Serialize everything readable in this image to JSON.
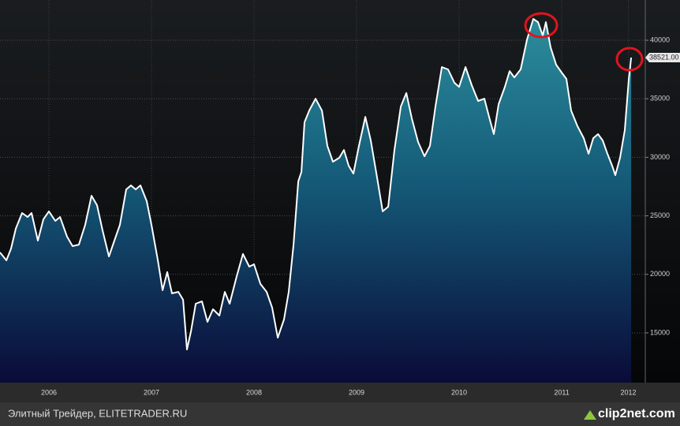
{
  "chart_data": {
    "type": "area",
    "x": [
      2006.023,
      2006.085,
      2006.131,
      2006.177,
      2006.238,
      2006.292,
      2006.331,
      2006.392,
      2006.446,
      2006.5,
      2006.562,
      2006.608,
      2006.677,
      2006.731,
      2006.792,
      2006.854,
      2006.915,
      2006.969,
      2007.023,
      2007.085,
      2007.138,
      2007.192,
      2007.254,
      2007.3,
      2007.346,
      2007.392,
      2007.454,
      2007.5,
      2007.562,
      2007.608,
      2007.654,
      2007.7,
      2007.762,
      2007.808,
      2007.846,
      2007.885,
      2007.931,
      2007.992,
      2008.046,
      2008.1,
      2008.162,
      2008.215,
      2008.262,
      2008.331,
      2008.392,
      2008.454,
      2008.5,
      2008.562,
      2008.623,
      2008.677,
      2008.731,
      2008.792,
      2008.838,
      2008.885,
      2008.931,
      2008.962,
      2008.992,
      2009.038,
      2009.1,
      2009.162,
      2009.215,
      2009.269,
      2009.331,
      2009.377,
      2009.423,
      2009.469,
      2009.523,
      2009.585,
      2009.638,
      2009.7,
      2009.754,
      2009.808,
      2009.869,
      2009.931,
      2009.985,
      2010.038,
      2010.1,
      2010.162,
      2010.215,
      2010.269,
      2010.331,
      2010.392,
      2010.454,
      2010.5,
      2010.562,
      2010.623,
      2010.685,
      2010.746,
      2010.792,
      2010.838,
      2010.885,
      2010.946,
      2010.992,
      2011.038,
      2011.1,
      2011.162,
      2011.223,
      2011.269,
      2011.315,
      2011.346,
      2011.392,
      2011.446,
      2011.5,
      2011.546,
      2011.592,
      2011.654,
      2011.715,
      2011.762,
      2011.808,
      2011.854,
      2011.9,
      2011.946,
      2011.992,
      2012.023,
      2012.069,
      2012.115,
      2012.154,
      2012.177
    ],
    "values": [
      21870,
      21200,
      22200,
      23900,
      25240,
      24900,
      25240,
      22880,
      24700,
      25380,
      24570,
      24900,
      23220,
      22410,
      22540,
      24230,
      26720,
      25910,
      23760,
      21530,
      22880,
      24230,
      27260,
      27600,
      27260,
      27600,
      26250,
      24230,
      21200,
      18640,
      20190,
      18370,
      18500,
      17830,
      13580,
      15130,
      17490,
      17690,
      15940,
      17020,
      16480,
      18500,
      17490,
      19850,
      21740,
      20660,
      20860,
      19180,
      18500,
      17150,
      14590,
      16140,
      18500,
      22540,
      27940,
      28750,
      32990,
      34000,
      35010,
      34000,
      30970,
      29620,
      29960,
      30630,
      29280,
      28610,
      30970,
      33460,
      31440,
      28270,
      25380,
      25780,
      30630,
      34340,
      35490,
      33330,
      31310,
      30090,
      30970,
      34340,
      37710,
      37510,
      36360,
      36020,
      37710,
      36160,
      34810,
      35010,
      33460,
      31980,
      34540,
      36020,
      37370,
      36830,
      37510,
      40070,
      41820,
      41550,
      40400,
      41550,
      39390,
      37910,
      37240,
      36700,
      34000,
      32650,
      31640,
      30300,
      31640,
      31980,
      31440,
      30300,
      29280,
      28480,
      29960,
      32320,
      36700,
      38521
    ],
    "color": "#ffffff",
    "last_value": {
      "value": 38521,
      "label": "38521.00"
    },
    "xlim": [
      2006.023,
      2012.315
    ],
    "xticks": [
      {
        "value": 2006.5,
        "label": "2006"
      },
      {
        "value": 2007.5,
        "label": "2007"
      },
      {
        "value": 2008.5,
        "label": "2008"
      },
      {
        "value": 2009.5,
        "label": "2009"
      },
      {
        "value": 2010.5,
        "label": "2010"
      },
      {
        "value": 2011.5,
        "label": "2011"
      },
      {
        "value": 2012.15,
        "label": "2012"
      }
    ],
    "ylim": [
      10750,
      43440
    ],
    "yticks": [
      15000,
      20000,
      25000,
      30000,
      35000,
      40000
    ],
    "grid": true
  },
  "footer": {
    "source": "Элитный Трейдер, ELITETRADER.RU",
    "logo": "clip2net.com"
  }
}
